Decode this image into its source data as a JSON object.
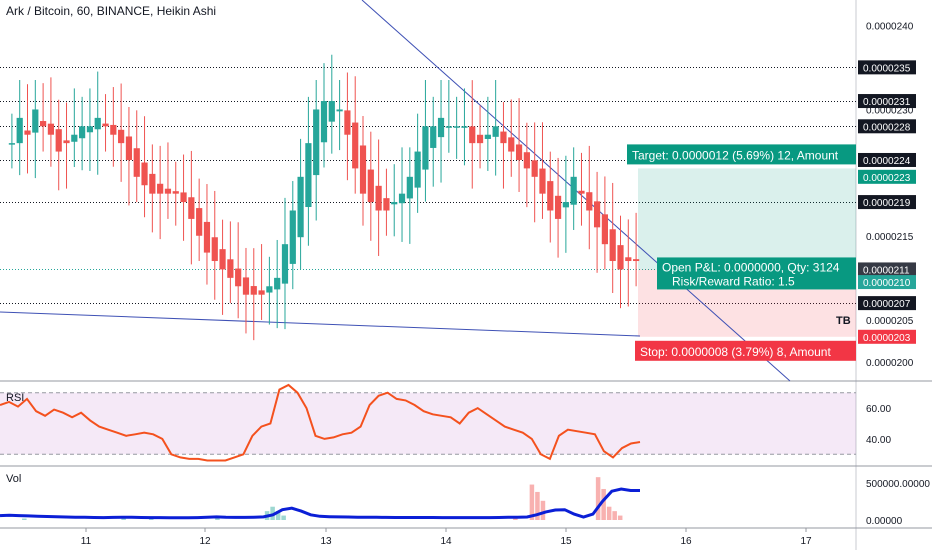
{
  "header": {
    "title": "Ark / Bitcoin, 60, BINANCE, Heikin Ashi"
  },
  "colors": {
    "up": "#26a69a",
    "down": "#ef5350",
    "rsi": "#f4511e",
    "vol_ma": "#0b1fd6",
    "target": "#089981",
    "stop": "#f23645",
    "trend": "#3f51b5"
  },
  "chart_data": {
    "type": "candlestick",
    "title": "Ark / Bitcoin, 60, BINANCE, Heikin Ashi",
    "price_axis": {
      "ylim": [
        1.9775e-05,
        2.43e-05
      ],
      "tick_labels": [
        "0.0000200",
        "0.0000205",
        "0.0000215",
        "0.0000230",
        "0.0000240"
      ]
    },
    "x_axis": {
      "day_labels": [
        "11",
        "12",
        "13",
        "14",
        "15",
        "16",
        "17"
      ]
    },
    "horizontal_levels": [
      {
        "label": "0.0000235",
        "value": 2.35e-05,
        "style": "line"
      },
      {
        "label": "0.0000231",
        "value": 2.31e-05,
        "style": "line"
      },
      {
        "label": "0.0000228",
        "value": 2.28e-05,
        "style": "line"
      },
      {
        "label": "0.0000224",
        "value": 2.24e-05,
        "style": "line"
      },
      {
        "label": "0.0000219",
        "value": 2.19e-05,
        "style": "line"
      },
      {
        "label": "0.0000207",
        "value": 2.07e-05,
        "style": "line"
      }
    ],
    "price_labels": [
      {
        "label": "0.0000211",
        "value": 2.11e-05,
        "color": "#363a45"
      },
      {
        "label": "0.0000210",
        "value": 2.095e-05,
        "color": "#26a69a"
      },
      {
        "label": "0.0000223",
        "value": 2.22e-05,
        "color": "#089981"
      },
      {
        "label": "0.0000203",
        "value": 2.03e-05,
        "color": "#f23645"
      }
    ],
    "position": {
      "entry": 2.11e-05,
      "target": 2.23e-05,
      "stop": 2.03e-05,
      "target_text": "Target: 0.0000012 (5.69%) 12, Amount",
      "open_text": "Open P&L: 0.0000000, Qty: 3124",
      "rr_text": "Risk/Reward Ratio: 1.5",
      "stop_text": "Stop: 0.0000008 (3.79%) 8, Amount"
    },
    "annotations": [
      "TB"
    ],
    "candles_close": [
      2.26e-05,
      2.29e-05,
      2.27e-05,
      2.3e-05,
      2.28e-05,
      2.27e-05,
      2.25e-05,
      2.26e-05,
      2.27e-05,
      2.28e-05,
      2.28e-05,
      2.29e-05,
      2.28e-05,
      2.27e-05,
      2.26e-05,
      2.24e-05,
      2.22e-05,
      2.21e-05,
      2.2e-05,
      2.2e-05,
      2.2e-05,
      2.2e-05,
      2.19e-05,
      2.17e-05,
      2.15e-05,
      2.13e-05,
      2.12e-05,
      2.11e-05,
      2.1e-05,
      2.09e-05,
      2.08e-05,
      2.08e-05,
      2.08e-05,
      2.09e-05,
      2.1e-05,
      2.14e-05,
      2.18e-05,
      2.22e-05,
      2.26e-05,
      2.3e-05,
      2.31e-05,
      2.31e-05,
      2.3e-05,
      2.27e-05,
      2.23e-05,
      2.2e-05,
      2.19e-05,
      2.18e-05,
      2.18e-05,
      2.19e-05,
      2.2e-05,
      2.22e-05,
      2.25e-05,
      2.28e-05,
      2.28e-05,
      2.29e-05,
      2.28e-05,
      2.28e-05,
      2.28e-05,
      2.26e-05,
      2.26e-05,
      2.27e-05,
      2.28e-05,
      2.26e-05,
      2.25e-05,
      2.24e-05,
      2.23e-05,
      2.22e-05,
      2.2e-05,
      2.18e-05,
      2.17e-05,
      2.19e-05,
      2.22e-05,
      2.2e-05,
      2.18e-05,
      2.16e-05,
      2.14e-05,
      2.12e-05,
      2.11e-05,
      2.12e-05,
      2.12e-05
    ],
    "rsi": {
      "label": "RSI",
      "tick_labels": [
        "40.00",
        "60.00"
      ],
      "ylim": [
        25,
        75
      ],
      "band": [
        30,
        70
      ],
      "values": [
        62,
        64,
        61,
        66,
        58,
        55,
        59,
        57,
        54,
        57,
        52,
        48,
        46,
        44,
        42,
        43,
        44,
        43,
        40,
        30,
        28,
        27,
        27,
        26,
        26,
        26,
        28,
        30,
        42,
        48,
        50,
        72,
        75,
        70,
        60,
        42,
        40,
        41,
        43,
        44,
        48,
        62,
        68,
        70,
        66,
        65,
        62,
        58,
        56,
        55,
        54,
        50,
        57,
        60,
        56,
        52,
        48,
        46,
        44,
        40,
        30,
        27,
        42,
        46,
        45,
        44,
        43,
        32,
        28,
        34,
        37,
        38
      ]
    },
    "volume": {
      "label": "Vol",
      "tick_labels": [
        "0.00000",
        "500000.00000"
      ],
      "ylim": [
        0,
        650000
      ],
      "bars": [
        0,
        0,
        0,
        0,
        20000,
        0,
        0,
        0,
        0,
        0,
        0,
        0,
        0,
        0,
        0,
        0,
        0,
        0,
        0,
        0,
        0,
        0,
        30000,
        0,
        0,
        0,
        0,
        20000,
        0,
        0,
        0,
        0,
        0,
        0,
        0,
        0,
        0,
        0,
        0,
        40000,
        0,
        0,
        0,
        0,
        0,
        0,
        0,
        0,
        120000,
        180000,
        120000,
        60000,
        0,
        0,
        0,
        0,
        0,
        0,
        0,
        0,
        0,
        0,
        0,
        0,
        0,
        0,
        0,
        0,
        0,
        0,
        0,
        0,
        0,
        0,
        0,
        0,
        0,
        0,
        0,
        0,
        0,
        0,
        0,
        0,
        0,
        0,
        0,
        0,
        0,
        0,
        0,
        0,
        0,
        40000,
        0,
        0,
        480000,
        380000,
        260000,
        0,
        0,
        0,
        0,
        0,
        0,
        0,
        0,
        0,
        580000,
        420000,
        180000,
        120000,
        60000,
        0,
        0,
        0
      ],
      "ma": [
        60000,
        65000,
        60000,
        55000,
        50000,
        48000,
        45000,
        40000,
        38000,
        36000,
        34000,
        32000,
        35000,
        38000,
        36000,
        34000,
        33000,
        32000,
        31000,
        30000,
        30000,
        32000,
        38000,
        42000,
        36000,
        35000,
        35000,
        38000,
        42000,
        70000,
        140000,
        160000,
        120000,
        70000,
        50000,
        45000,
        42000,
        40000,
        38000,
        37000,
        36000,
        35000,
        34000,
        34000,
        34000,
        34000,
        34000,
        33000,
        33000,
        33000,
        32000,
        32000,
        33000,
        34000,
        36000,
        38000,
        40000,
        70000,
        110000,
        135000,
        140000,
        80000,
        40000,
        80000,
        250000,
        390000,
        420000,
        400000,
        400000
      ]
    }
  }
}
